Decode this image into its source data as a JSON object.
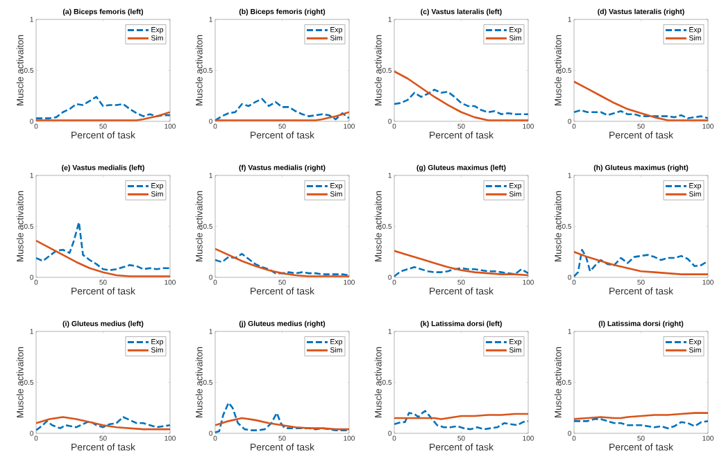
{
  "chart_data": [
    {
      "type": "line",
      "title": "(a) Biceps femoris (left)",
      "xlabel": "Percent of task",
      "ylabel": "Muscle activaiton",
      "xlim": [
        0,
        100
      ],
      "ylim": [
        0,
        1
      ],
      "xticks": [
        0,
        50,
        100
      ],
      "yticks": [
        0,
        0.5,
        1
      ],
      "legend": "top right",
      "series": [
        {
          "name": "Exp",
          "color": "#0072bd",
          "line_style": "dashed",
          "x": [
            0,
            5,
            10,
            15,
            20,
            25,
            30,
            35,
            40,
            45,
            50,
            55,
            60,
            65,
            70,
            75,
            80,
            85,
            90,
            95,
            100
          ],
          "values": [
            0.03,
            0.03,
            0.03,
            0.04,
            0.09,
            0.12,
            0.17,
            0.16,
            0.2,
            0.24,
            0.15,
            0.16,
            0.16,
            0.17,
            0.12,
            0.08,
            0.05,
            0.07,
            0.05,
            0.06,
            0.06
          ]
        },
        {
          "name": "Sim",
          "color": "#d95319",
          "line_style": "solid",
          "x": [
            0,
            25,
            50,
            70,
            75,
            80,
            85,
            90,
            95,
            100
          ],
          "values": [
            0.01,
            0.01,
            0.01,
            0.01,
            0.01,
            0.02,
            0.035,
            0.05,
            0.07,
            0.09
          ]
        }
      ]
    },
    {
      "type": "line",
      "title": "(b) Biceps femoris (right)",
      "xlabel": "Percent of task",
      "ylabel": "Muscle activaiton",
      "xlim": [
        0,
        100
      ],
      "ylim": [
        0,
        1
      ],
      "xticks": [
        0,
        50,
        100
      ],
      "yticks": [
        0,
        0.5,
        1
      ],
      "legend": "top right",
      "series": [
        {
          "name": "Exp",
          "color": "#0072bd",
          "line_style": "dashed",
          "x": [
            0,
            5,
            10,
            15,
            20,
            25,
            30,
            35,
            40,
            45,
            50,
            55,
            60,
            65,
            70,
            75,
            80,
            85,
            90,
            95,
            100
          ],
          "values": [
            0.01,
            0.05,
            0.08,
            0.09,
            0.17,
            0.15,
            0.19,
            0.22,
            0.15,
            0.19,
            0.14,
            0.14,
            0.1,
            0.07,
            0.05,
            0.06,
            0.07,
            0.06,
            0.02,
            0.08,
            0.03
          ]
        },
        {
          "name": "Sim",
          "color": "#d95319",
          "line_style": "solid",
          "x": [
            0,
            25,
            50,
            70,
            75,
            80,
            85,
            90,
            95,
            100
          ],
          "values": [
            0.01,
            0.01,
            0.01,
            0.01,
            0.01,
            0.02,
            0.035,
            0.05,
            0.07,
            0.09
          ]
        }
      ]
    },
    {
      "type": "line",
      "title": "(c) Vastus lateralis (left)",
      "xlabel": "Percent of task",
      "ylabel": "Muscle activaiton",
      "xlim": [
        0,
        100
      ],
      "ylim": [
        0,
        1
      ],
      "xticks": [
        0,
        50,
        100
      ],
      "yticks": [
        0,
        0.5,
        1
      ],
      "legend": "top right",
      "series": [
        {
          "name": "Exp",
          "color": "#0072bd",
          "line_style": "dashed",
          "x": [
            0,
            5,
            10,
            15,
            20,
            25,
            30,
            35,
            40,
            45,
            50,
            55,
            60,
            65,
            70,
            75,
            80,
            85,
            90,
            95,
            100
          ],
          "values": [
            0.17,
            0.18,
            0.21,
            0.28,
            0.24,
            0.27,
            0.31,
            0.28,
            0.29,
            0.24,
            0.18,
            0.15,
            0.15,
            0.11,
            0.09,
            0.1,
            0.07,
            0.08,
            0.07,
            0.07,
            0.07
          ]
        },
        {
          "name": "Sim",
          "color": "#d95319",
          "line_style": "solid",
          "x": [
            0,
            10,
            20,
            30,
            40,
            50,
            60,
            70,
            80,
            90,
            100
          ],
          "values": [
            0.49,
            0.42,
            0.33,
            0.24,
            0.16,
            0.09,
            0.04,
            0.01,
            0.01,
            0.01,
            0.01
          ]
        }
      ]
    },
    {
      "type": "line",
      "title": "(d) Vastus lateralis (right)",
      "xlabel": "Percent of task",
      "ylabel": "Muscle activaiton",
      "xlim": [
        0,
        100
      ],
      "ylim": [
        0,
        1
      ],
      "xticks": [
        0,
        50,
        100
      ],
      "yticks": [
        0,
        0.5,
        1
      ],
      "legend": "top right",
      "series": [
        {
          "name": "Exp",
          "color": "#0072bd",
          "line_style": "dashed",
          "x": [
            0,
            5,
            10,
            15,
            20,
            25,
            30,
            35,
            40,
            45,
            50,
            55,
            60,
            65,
            70,
            75,
            80,
            85,
            90,
            95,
            100
          ],
          "values": [
            0.09,
            0.11,
            0.09,
            0.09,
            0.09,
            0.06,
            0.08,
            0.1,
            0.07,
            0.07,
            0.05,
            0.05,
            0.05,
            0.05,
            0.05,
            0.04,
            0.06,
            0.03,
            0.04,
            0.05,
            0.03
          ]
        },
        {
          "name": "Sim",
          "color": "#d95319",
          "line_style": "solid",
          "x": [
            0,
            10,
            20,
            30,
            40,
            50,
            60,
            70,
            80,
            90,
            100
          ],
          "values": [
            0.39,
            0.32,
            0.25,
            0.18,
            0.12,
            0.08,
            0.04,
            0.01,
            0.01,
            0.01,
            0.01
          ]
        }
      ]
    },
    {
      "type": "line",
      "title": "(e) Vastus medialis (left)",
      "xlabel": "Percent of task",
      "ylabel": "Muscle activaiton",
      "xlim": [
        0,
        100
      ],
      "ylim": [
        0,
        1
      ],
      "xticks": [
        0,
        50,
        100
      ],
      "yticks": [
        0,
        0.5,
        1
      ],
      "legend": "top right",
      "series": [
        {
          "name": "Exp",
          "color": "#0072bd",
          "line_style": "dashed",
          "x": [
            0,
            5,
            10,
            15,
            20,
            25,
            28,
            32,
            35,
            40,
            45,
            50,
            55,
            60,
            65,
            70,
            75,
            80,
            85,
            90,
            95,
            100
          ],
          "values": [
            0.19,
            0.16,
            0.21,
            0.26,
            0.27,
            0.24,
            0.35,
            0.54,
            0.22,
            0.17,
            0.13,
            0.08,
            0.07,
            0.08,
            0.1,
            0.12,
            0.11,
            0.08,
            0.09,
            0.08,
            0.09,
            0.09
          ]
        },
        {
          "name": "Sim",
          "color": "#d95319",
          "line_style": "solid",
          "x": [
            0,
            10,
            20,
            30,
            40,
            50,
            60,
            70,
            80,
            90,
            100
          ],
          "values": [
            0.36,
            0.29,
            0.22,
            0.15,
            0.09,
            0.05,
            0.02,
            0.01,
            0.01,
            0.01,
            0.01
          ]
        }
      ]
    },
    {
      "type": "line",
      "title": "(f) Vastus medialis (right)",
      "xlabel": "Percent of task",
      "ylabel": "Muscle activaiton",
      "xlim": [
        0,
        100
      ],
      "ylim": [
        0,
        1
      ],
      "xticks": [
        0,
        50,
        100
      ],
      "yticks": [
        0,
        0.5,
        1
      ],
      "legend": "top right",
      "series": [
        {
          "name": "Exp",
          "color": "#0072bd",
          "line_style": "dashed",
          "x": [
            0,
            5,
            10,
            15,
            20,
            25,
            30,
            35,
            40,
            45,
            50,
            55,
            60,
            65,
            70,
            75,
            80,
            85,
            90,
            95,
            100
          ],
          "values": [
            0.17,
            0.15,
            0.2,
            0.19,
            0.23,
            0.18,
            0.13,
            0.1,
            0.08,
            0.04,
            0.04,
            0.05,
            0.04,
            0.05,
            0.04,
            0.04,
            0.03,
            0.03,
            0.03,
            0.03,
            0.02
          ]
        },
        {
          "name": "Sim",
          "color": "#d95319",
          "line_style": "solid",
          "x": [
            0,
            10,
            20,
            30,
            40,
            50,
            60,
            70,
            80,
            90,
            100
          ],
          "values": [
            0.28,
            0.22,
            0.16,
            0.11,
            0.07,
            0.04,
            0.02,
            0.01,
            0.01,
            0.01,
            0.01
          ]
        }
      ]
    },
    {
      "type": "line",
      "title": "(g) Gluteus maximus (left)",
      "xlabel": "Percent of task",
      "ylabel": "Muscle activaiton",
      "xlim": [
        0,
        100
      ],
      "ylim": [
        0,
        1
      ],
      "xticks": [
        0,
        50,
        100
      ],
      "yticks": [
        0,
        0.5,
        1
      ],
      "legend": "top right",
      "series": [
        {
          "name": "Exp",
          "color": "#0072bd",
          "line_style": "dashed",
          "x": [
            0,
            5,
            10,
            15,
            20,
            25,
            30,
            35,
            40,
            45,
            50,
            55,
            60,
            65,
            70,
            75,
            80,
            85,
            90,
            95,
            100
          ],
          "values": [
            0.01,
            0.06,
            0.08,
            0.1,
            0.08,
            0.06,
            0.05,
            0.05,
            0.06,
            0.08,
            0.09,
            0.08,
            0.08,
            0.07,
            0.06,
            0.06,
            0.05,
            0.04,
            0.03,
            0.08,
            0.04
          ]
        },
        {
          "name": "Sim",
          "color": "#d95319",
          "line_style": "solid",
          "x": [
            0,
            10,
            20,
            30,
            40,
            50,
            60,
            70,
            80,
            90,
            100
          ],
          "values": [
            0.26,
            0.22,
            0.18,
            0.14,
            0.1,
            0.07,
            0.05,
            0.04,
            0.03,
            0.03,
            0.02
          ]
        }
      ]
    },
    {
      "type": "line",
      "title": "(h) Gluteus maximus (right)",
      "xlabel": "Percent of task",
      "ylabel": "Muscle activaiton",
      "xlim": [
        0,
        100
      ],
      "ylim": [
        0,
        1
      ],
      "xticks": [
        0,
        50,
        100
      ],
      "yticks": [
        0,
        0.5,
        1
      ],
      "legend": "top right",
      "series": [
        {
          "name": "Exp",
          "color": "#0072bd",
          "line_style": "dashed",
          "x": [
            0,
            3,
            6,
            9,
            12,
            16,
            20,
            25,
            30,
            35,
            40,
            45,
            50,
            55,
            60,
            65,
            70,
            75,
            80,
            85,
            90,
            95,
            100
          ],
          "values": [
            0.01,
            0.05,
            0.27,
            0.2,
            0.06,
            0.12,
            0.17,
            0.13,
            0.12,
            0.19,
            0.14,
            0.2,
            0.21,
            0.22,
            0.2,
            0.17,
            0.19,
            0.19,
            0.21,
            0.18,
            0.11,
            0.12,
            0.16
          ]
        },
        {
          "name": "Sim",
          "color": "#d95319",
          "line_style": "solid",
          "x": [
            0,
            10,
            20,
            30,
            40,
            50,
            60,
            70,
            80,
            90,
            100
          ],
          "values": [
            0.25,
            0.2,
            0.16,
            0.12,
            0.09,
            0.06,
            0.05,
            0.04,
            0.03,
            0.03,
            0.03
          ]
        }
      ]
    },
    {
      "type": "line",
      "title": "(i) Gluteus medius (left)",
      "xlabel": "Percent of task",
      "ylabel": "Muscle activaiton",
      "xlim": [
        0,
        100
      ],
      "ylim": [
        0,
        1
      ],
      "xticks": [
        0,
        50,
        100
      ],
      "yticks": [
        0,
        0.5,
        1
      ],
      "legend": "top right",
      "series": [
        {
          "name": "Exp",
          "color": "#0072bd",
          "line_style": "dashed",
          "x": [
            0,
            5,
            8,
            12,
            18,
            22,
            26,
            30,
            35,
            40,
            45,
            50,
            55,
            60,
            65,
            70,
            75,
            80,
            85,
            90,
            95,
            100
          ],
          "values": [
            0.03,
            0.08,
            0.12,
            0.08,
            0.05,
            0.08,
            0.07,
            0.06,
            0.09,
            0.12,
            0.08,
            0.06,
            0.09,
            0.1,
            0.16,
            0.13,
            0.1,
            0.1,
            0.08,
            0.06,
            0.07,
            0.08
          ]
        },
        {
          "name": "Sim",
          "color": "#d95319",
          "line_style": "solid",
          "x": [
            0,
            10,
            20,
            30,
            40,
            50,
            60,
            70,
            80,
            90,
            100
          ],
          "values": [
            0.1,
            0.14,
            0.16,
            0.14,
            0.11,
            0.08,
            0.06,
            0.05,
            0.04,
            0.04,
            0.04
          ]
        }
      ]
    },
    {
      "type": "line",
      "title": "(j) Gluteus medius (right)",
      "xlabel": "Percent of task",
      "ylabel": "Muscle activaiton",
      "xlim": [
        0,
        100
      ],
      "ylim": [
        0,
        1
      ],
      "xticks": [
        0,
        50,
        100
      ],
      "yticks": [
        0,
        0.5,
        1
      ],
      "legend": "top right",
      "series": [
        {
          "name": "Exp",
          "color": "#0072bd",
          "line_style": "dashed",
          "x": [
            0,
            3,
            6,
            10,
            13,
            17,
            22,
            27,
            32,
            37,
            42,
            46,
            49,
            52,
            58,
            65,
            70,
            75,
            80,
            90,
            100
          ],
          "values": [
            0.01,
            0.02,
            0.18,
            0.3,
            0.25,
            0.1,
            0.04,
            0.03,
            0.03,
            0.04,
            0.1,
            0.2,
            0.1,
            0.05,
            0.05,
            0.05,
            0.05,
            0.04,
            0.05,
            0.03,
            0.03
          ]
        },
        {
          "name": "Sim",
          "color": "#d95319",
          "line_style": "solid",
          "x": [
            0,
            10,
            20,
            30,
            40,
            50,
            60,
            70,
            80,
            90,
            100
          ],
          "values": [
            0.08,
            0.12,
            0.15,
            0.13,
            0.1,
            0.08,
            0.06,
            0.05,
            0.05,
            0.04,
            0.04
          ]
        }
      ]
    },
    {
      "type": "line",
      "title": "(k) Latissima dorsi (left)",
      "xlabel": "Percent of task",
      "ylabel": "Muscle activaiton",
      "xlim": [
        0,
        100
      ],
      "ylim": [
        0,
        1
      ],
      "xticks": [
        0,
        50,
        100
      ],
      "yticks": [
        0,
        0.5,
        1
      ],
      "legend": "top right",
      "series": [
        {
          "name": "Exp",
          "color": "#0072bd",
          "line_style": "dashed",
          "x": [
            0,
            5,
            8,
            11,
            15,
            18,
            20,
            23,
            27,
            32,
            37,
            42,
            47,
            52,
            57,
            62,
            67,
            72,
            77,
            82,
            87,
            92,
            96,
            100
          ],
          "values": [
            0.09,
            0.11,
            0.11,
            0.2,
            0.19,
            0.16,
            0.19,
            0.22,
            0.16,
            0.08,
            0.06,
            0.06,
            0.07,
            0.05,
            0.04,
            0.06,
            0.04,
            0.05,
            0.06,
            0.1,
            0.09,
            0.08,
            0.11,
            0.12
          ]
        },
        {
          "name": "Sim",
          "color": "#d95319",
          "line_style": "solid",
          "x": [
            0,
            10,
            20,
            30,
            35,
            40,
            50,
            60,
            70,
            80,
            90,
            100
          ],
          "values": [
            0.15,
            0.15,
            0.15,
            0.15,
            0.14,
            0.15,
            0.17,
            0.17,
            0.18,
            0.18,
            0.19,
            0.19
          ]
        }
      ]
    },
    {
      "type": "line",
      "title": "(l) Latissima dorsi (right)",
      "xlabel": "Percent of task",
      "ylabel": "Muscle activaiton",
      "xlim": [
        0,
        100
      ],
      "ylim": [
        0,
        1
      ],
      "xticks": [
        0,
        50,
        100
      ],
      "yticks": [
        0,
        0.5,
        1
      ],
      "legend": "top right",
      "series": [
        {
          "name": "Exp",
          "color": "#0072bd",
          "line_style": "dashed",
          "x": [
            0,
            5,
            10,
            15,
            20,
            25,
            30,
            35,
            40,
            45,
            50,
            55,
            60,
            65,
            70,
            75,
            80,
            85,
            90,
            95,
            100
          ],
          "values": [
            0.12,
            0.12,
            0.12,
            0.14,
            0.14,
            0.12,
            0.1,
            0.1,
            0.08,
            0.08,
            0.08,
            0.07,
            0.06,
            0.07,
            0.05,
            0.07,
            0.11,
            0.1,
            0.07,
            0.11,
            0.12
          ]
        },
        {
          "name": "Sim",
          "color": "#d95319",
          "line_style": "solid",
          "x": [
            0,
            10,
            20,
            30,
            35,
            40,
            50,
            60,
            70,
            80,
            90,
            100
          ],
          "values": [
            0.14,
            0.15,
            0.16,
            0.15,
            0.15,
            0.16,
            0.17,
            0.18,
            0.18,
            0.19,
            0.2,
            0.2
          ]
        }
      ]
    }
  ]
}
